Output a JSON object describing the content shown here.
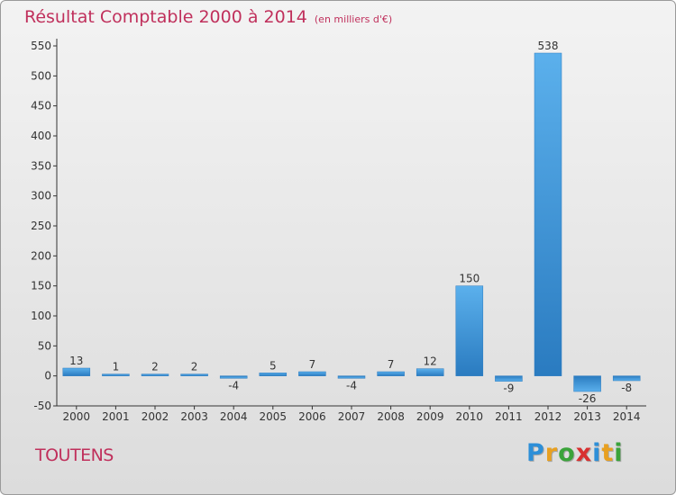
{
  "header": {
    "title": "Résultat Comptable 2000 à 2014",
    "subtitle": "(en milliers d'€)"
  },
  "footer": {
    "commune": "TOUTENS",
    "logo": [
      "P",
      "r",
      "o",
      "x",
      "i",
      "t",
      "i"
    ]
  },
  "colors": {
    "title": "#c0305c",
    "bar_light": "#5bb0ec",
    "bar_dark": "#2a7bc0"
  },
  "chart_data": {
    "type": "bar",
    "title": "Résultat Comptable 2000 à 2014",
    "subtitle": "(en milliers d'€)",
    "categories": [
      "2000",
      "2001",
      "2002",
      "2003",
      "2004",
      "2005",
      "2006",
      "2007",
      "2008",
      "2009",
      "2010",
      "2011",
      "2012",
      "2013",
      "2014"
    ],
    "values": [
      13,
      1,
      2,
      2,
      -4,
      5,
      7,
      -4,
      7,
      12,
      150,
      -9,
      538,
      -26,
      -8
    ],
    "value_labels": [
      "13",
      "1",
      "2",
      "2",
      "-4",
      "5",
      "7",
      "-4",
      "7",
      "12",
      "150",
      "-9",
      "538",
      "-26",
      "-8"
    ],
    "ylim": [
      -50,
      550
    ],
    "yticks": [
      -50,
      0,
      50,
      100,
      150,
      200,
      250,
      300,
      350,
      400,
      450,
      500,
      550
    ],
    "ytick_labels": [
      "-50",
      "0",
      "50",
      "100",
      "150",
      "200",
      "250",
      "300",
      "350",
      "400",
      "450",
      "500",
      "550"
    ],
    "grid": false,
    "xlabel": "",
    "ylabel": ""
  }
}
